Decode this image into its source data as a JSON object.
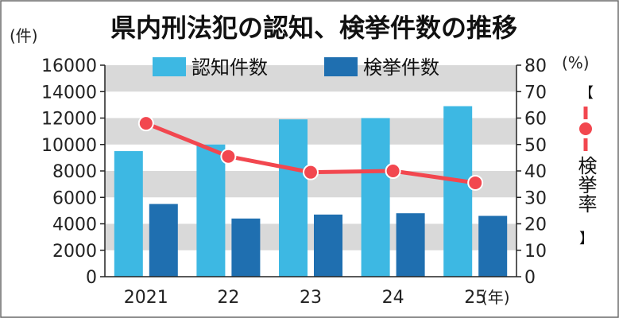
{
  "chart_data": {
    "type": "bar",
    "title": "県内刑法犯の認知、検挙件数の推移",
    "categories": [
      "2021",
      "22",
      "23",
      "24",
      "25"
    ],
    "x_unit": "(年)",
    "y_left": {
      "unit": "(件)",
      "ylim": [
        0,
        16000
      ],
      "ticks": [
        "0",
        "2000",
        "4000",
        "6000",
        "8000",
        "10000",
        "12000",
        "14000",
        "16000"
      ]
    },
    "y_right": {
      "unit": "(%)",
      "ylim": [
        0,
        80
      ],
      "ticks": [
        "0",
        "10",
        "20",
        "30",
        "40",
        "50",
        "60",
        "70",
        "80"
      ],
      "label": "検挙率"
    },
    "series": [
      {
        "name": "認知件数",
        "type": "bar",
        "axis": "left",
        "color": "#3db8e3",
        "values": [
          9500,
          10000,
          11900,
          12000,
          12900
        ]
      },
      {
        "name": "検挙件数",
        "type": "bar",
        "axis": "left",
        "color": "#1f6fb0",
        "values": [
          5500,
          4400,
          4700,
          4800,
          4600
        ]
      },
      {
        "name": "検挙率",
        "type": "line",
        "axis": "right",
        "color": "#f2474f",
        "values": [
          58,
          45.5,
          39.5,
          40,
          35.5
        ]
      }
    ],
    "grid": "alternating gray horizontal bands",
    "legend": "top-center"
  }
}
